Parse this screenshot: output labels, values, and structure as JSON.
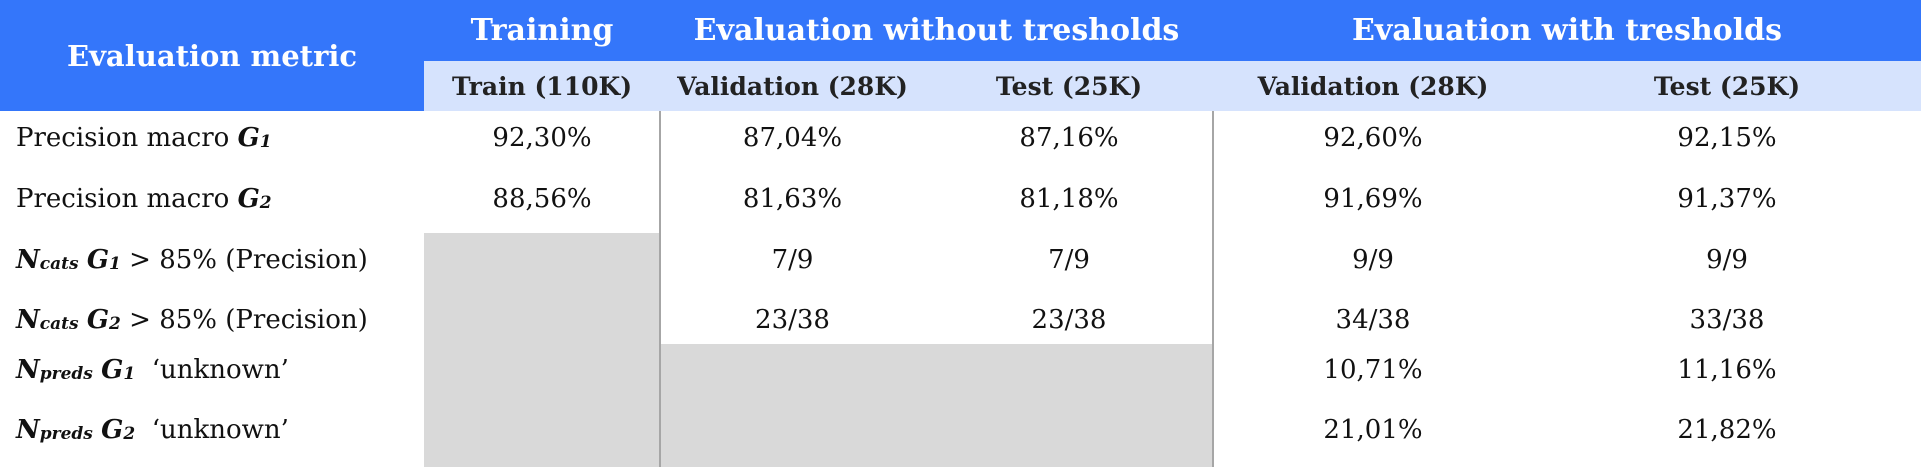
{
  "header": {
    "metric": "Evaluation metric",
    "training": "Training",
    "eval_without": "Evaluation without tresholds",
    "eval_with": "Evaluation with tresholds",
    "sub": [
      "Train (110K)",
      "Validation (28K)",
      "Test (25K)",
      "Validation (28K)",
      "Test (25K)"
    ]
  },
  "rows": [
    {
      "label_pre": "Precision macro ",
      "var": "G",
      "sub": "1",
      "post": "",
      "cells": [
        "92,30%",
        "87,04%",
        "87,16%",
        "92,60%",
        "92,15%"
      ]
    },
    {
      "label_pre": "Precision macro ",
      "var": "G",
      "sub": "2",
      "post": "",
      "cells": [
        "88,56%",
        "81,63%",
        "81,18%",
        "91,69%",
        "91,37%"
      ]
    },
    {
      "label_pre": "",
      "nvar": "N",
      "nsub": "cats",
      "var": "G",
      "sub": "1",
      "post": " > 85% (Precision)",
      "cells": [
        "",
        "7/9",
        "7/9",
        "9/9",
        "9/9"
      ]
    },
    {
      "label_pre": "",
      "nvar": "N",
      "nsub": "cats",
      "var": "G",
      "sub": "2",
      "post": " > 85% (Precision)",
      "cells": [
        "",
        "23/38",
        "23/38",
        "34/38",
        "33/38"
      ]
    },
    {
      "label_pre": "",
      "nvar": "N",
      "nsub": "preds",
      "var": "G",
      "sub": "1",
      "post": "  ‘unknown’",
      "cells": [
        "",
        "",
        "",
        "10,71%",
        "11,16%"
      ]
    },
    {
      "label_pre": "",
      "nvar": "N",
      "nsub": "preds",
      "var": "G",
      "sub": "2",
      "post": "  ‘unknown’",
      "cells": [
        "",
        "",
        "",
        "21,01%",
        "21,82%"
      ]
    }
  ],
  "colors": {
    "header_blue": "#3476fa",
    "subheader_blue": "#d6e3fd",
    "shaded": "#d9d9d9"
  }
}
